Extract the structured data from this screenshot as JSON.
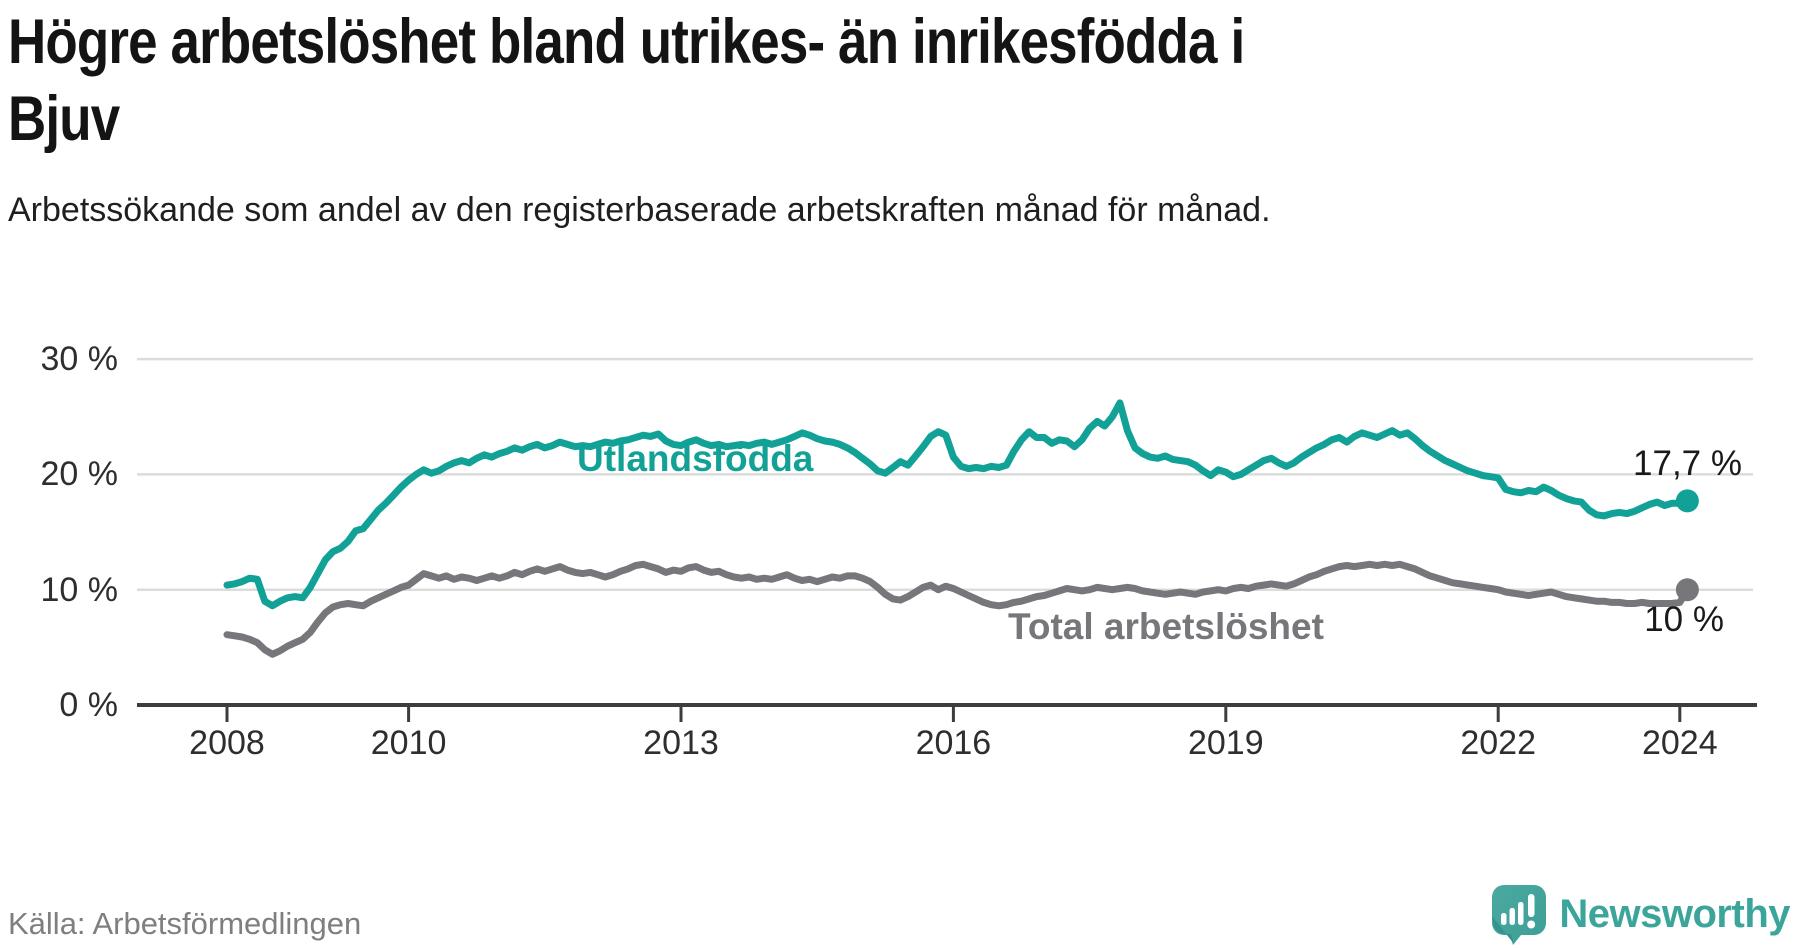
{
  "title": {
    "text": "Högre arbetslöshet bland utrikes- än inrikesfödda i Bjuv",
    "lines": [
      "Högre arbetslöshet bland utrikes- än inrikesfödda i",
      "Bjuv"
    ]
  },
  "subtitle": "Arbetssökande som andel av den registerbaserade arbetskraften månad för månad.",
  "source": "Källa: Arbetsförmedlingen",
  "logo": {
    "text": "Newsworthy",
    "icon": "newsworthy-speech-bubble-chart-icon",
    "color": "#3ba49b"
  },
  "chart_data": {
    "type": "line",
    "frequency": "monthly",
    "x_start": "2008-01",
    "x_end": "2024-02",
    "x_tick_years": [
      2008,
      2010,
      2013,
      2016,
      2019,
      2022,
      2024
    ],
    "x_tick_labels": [
      "2008",
      "2010",
      "2013",
      "2016",
      "2019",
      "2022",
      "2024"
    ],
    "y_tick_values": [
      30,
      20,
      10,
      0
    ],
    "y_tick_labels": [
      "30 %",
      "20 %",
      "10 %",
      "0 %"
    ],
    "ylim": [
      0,
      32
    ],
    "grid": "horizontal",
    "legend": "inline-labels",
    "colors": {
      "grid": "#dcdcdc",
      "axis": "#3d3d3d",
      "tick_text": "#2e2e2e"
    },
    "series": [
      {
        "name": "Utlandsfödda",
        "color": "#12a196",
        "end_label": "17,7 %",
        "end_value": 17.7,
        "values": [
          10.4,
          10.5,
          10.7,
          11.0,
          10.9,
          9.0,
          8.6,
          9.0,
          9.3,
          9.4,
          9.3,
          10.2,
          11.4,
          12.6,
          13.3,
          13.6,
          14.2,
          15.1,
          15.3,
          16.1,
          16.9,
          17.5,
          18.2,
          18.9,
          19.5,
          20.0,
          20.4,
          20.1,
          20.3,
          20.7,
          21.0,
          21.2,
          21.0,
          21.4,
          21.7,
          21.5,
          21.8,
          22.0,
          22.3,
          22.1,
          22.4,
          22.6,
          22.3,
          22.5,
          22.8,
          22.6,
          22.4,
          22.5,
          22.4,
          22.6,
          22.8,
          22.7,
          22.9,
          23.0,
          23.2,
          23.4,
          23.3,
          23.5,
          22.9,
          22.6,
          22.5,
          22.8,
          23.0,
          22.7,
          22.5,
          22.6,
          22.4,
          22.5,
          22.6,
          22.5,
          22.7,
          22.8,
          22.6,
          22.8,
          23.0,
          23.3,
          23.6,
          23.4,
          23.1,
          22.9,
          22.8,
          22.6,
          22.3,
          21.9,
          21.4,
          20.9,
          20.3,
          20.1,
          20.6,
          21.1,
          20.8,
          21.6,
          22.4,
          23.3,
          23.7,
          23.4,
          21.5,
          20.7,
          20.5,
          20.6,
          20.5,
          20.7,
          20.6,
          20.8,
          22.0,
          23.0,
          23.7,
          23.2,
          23.2,
          22.7,
          23.0,
          22.9,
          22.4,
          23.0,
          24.0,
          24.6,
          24.2,
          25.0,
          26.2,
          23.8,
          22.3,
          21.8,
          21.5,
          21.4,
          21.6,
          21.3,
          21.2,
          21.1,
          20.8,
          20.3,
          19.9,
          20.4,
          20.2,
          19.8,
          20.0,
          20.4,
          20.8,
          21.2,
          21.4,
          21.0,
          20.7,
          21.0,
          21.5,
          21.9,
          22.3,
          22.6,
          23.0,
          23.2,
          22.8,
          23.3,
          23.6,
          23.4,
          23.2,
          23.5,
          23.8,
          23.4,
          23.6,
          23.1,
          22.5,
          22.0,
          21.6,
          21.2,
          20.9,
          20.6,
          20.3,
          20.1,
          19.9,
          19.8,
          19.7,
          18.7,
          18.5,
          18.4,
          18.6,
          18.5,
          18.9,
          18.6,
          18.2,
          17.9,
          17.7,
          17.6,
          16.9,
          16.5,
          16.4,
          16.6,
          16.7,
          16.6,
          16.8,
          17.1,
          17.4,
          17.6,
          17.3,
          17.5,
          17.5,
          17.7
        ]
      },
      {
        "name": "Total arbetslöshet",
        "color": "#76767b",
        "end_label": "10 %",
        "end_value": 10.0,
        "values": [
          6.1,
          6.0,
          5.9,
          5.7,
          5.4,
          4.8,
          4.4,
          4.7,
          5.1,
          5.4,
          5.7,
          6.3,
          7.2,
          8.0,
          8.5,
          8.7,
          8.8,
          8.7,
          8.6,
          9.0,
          9.3,
          9.6,
          9.9,
          10.2,
          10.4,
          10.9,
          11.4,
          11.2,
          11.0,
          11.2,
          10.9,
          11.1,
          11.0,
          10.8,
          11.0,
          11.2,
          11.0,
          11.2,
          11.5,
          11.3,
          11.6,
          11.8,
          11.6,
          11.8,
          12.0,
          11.7,
          11.5,
          11.4,
          11.5,
          11.3,
          11.1,
          11.3,
          11.6,
          11.8,
          12.1,
          12.2,
          12.0,
          11.8,
          11.5,
          11.7,
          11.6,
          11.9,
          12.0,
          11.7,
          11.5,
          11.6,
          11.3,
          11.1,
          11.0,
          11.1,
          10.9,
          11.0,
          10.9,
          11.1,
          11.3,
          11.0,
          10.8,
          10.9,
          10.7,
          10.9,
          11.1,
          11.0,
          11.2,
          11.2,
          11.0,
          10.7,
          10.2,
          9.6,
          9.2,
          9.1,
          9.4,
          9.8,
          10.2,
          10.4,
          10.0,
          10.3,
          10.1,
          9.8,
          9.5,
          9.2,
          8.9,
          8.7,
          8.6,
          8.7,
          8.9,
          9.0,
          9.2,
          9.4,
          9.5,
          9.7,
          9.9,
          10.1,
          10.0,
          9.9,
          10.0,
          10.2,
          10.1,
          10.0,
          10.1,
          10.2,
          10.1,
          9.9,
          9.8,
          9.7,
          9.6,
          9.7,
          9.8,
          9.7,
          9.6,
          9.8,
          9.9,
          10.0,
          9.9,
          10.1,
          10.2,
          10.1,
          10.3,
          10.4,
          10.5,
          10.4,
          10.3,
          10.5,
          10.8,
          11.1,
          11.3,
          11.6,
          11.8,
          12.0,
          12.1,
          12.0,
          12.1,
          12.2,
          12.1,
          12.2,
          12.1,
          12.2,
          12.0,
          11.8,
          11.5,
          11.2,
          11.0,
          10.8,
          10.6,
          10.5,
          10.4,
          10.3,
          10.2,
          10.1,
          10.0,
          9.8,
          9.7,
          9.6,
          9.5,
          9.6,
          9.7,
          9.8,
          9.6,
          9.4,
          9.3,
          9.2,
          9.1,
          9.0,
          9.0,
          8.9,
          8.9,
          8.8,
          8.8,
          8.9,
          8.8,
          8.8,
          8.8,
          8.8,
          8.9,
          10.0
        ]
      }
    ]
  }
}
